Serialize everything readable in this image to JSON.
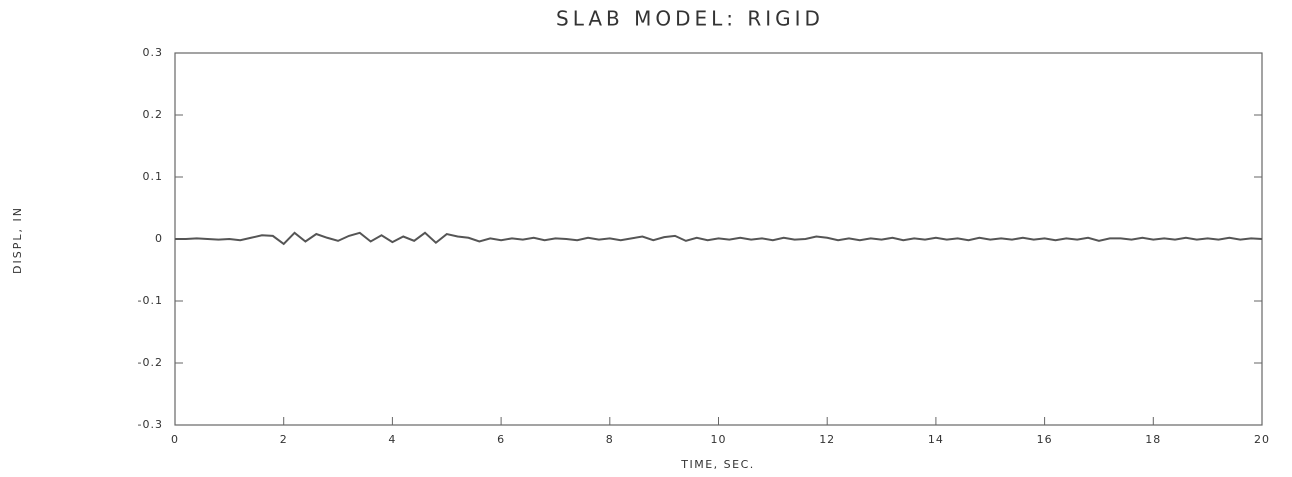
{
  "chart_data": {
    "type": "line",
    "title": "SLAB MODEL: RIGID",
    "x_label": "TIME, SEC.",
    "y_label": "DISPL, IN",
    "xlim": [
      0,
      20
    ],
    "xticks": [
      0,
      2,
      4,
      6,
      8,
      10,
      12,
      14,
      16,
      18,
      20
    ],
    "ylim": [
      -0.3,
      0.3
    ],
    "yticks": [
      0.3,
      0.2,
      0.1,
      0,
      -0.1,
      -0.2,
      -0.3
    ],
    "grid": false,
    "series": [
      {
        "color": "#555555",
        "x": [
          0,
          0.2,
          0.4,
          0.6,
          0.8,
          1,
          1.2,
          1.4,
          1.6,
          1.8,
          2,
          2.2,
          2.4,
          2.6,
          2.8,
          3,
          3.2,
          3.4,
          3.6,
          3.8,
          4,
          4.2,
          4.4,
          4.6,
          4.8,
          5,
          5.2,
          5.4,
          5.6,
          5.8,
          6,
          6.2,
          6.4,
          6.6,
          6.8,
          7,
          7.2,
          7.4,
          7.6,
          7.8,
          8,
          8.2,
          8.4,
          8.6,
          8.8,
          9,
          9.2,
          9.4,
          9.6,
          9.8,
          10,
          10.2,
          10.4,
          10.6,
          10.8,
          11,
          11.2,
          11.4,
          11.6,
          11.8,
          12,
          12.2,
          12.4,
          12.6,
          12.8,
          13,
          13.2,
          13.4,
          13.6,
          13.8,
          14,
          14.2,
          14.4,
          14.6,
          14.8,
          15,
          15.2,
          15.4,
          15.6,
          15.8,
          16,
          16.2,
          16.4,
          16.6,
          16.8,
          17,
          17.2,
          17.4,
          17.6,
          17.8,
          18,
          18.2,
          18.4,
          18.6,
          18.8,
          19,
          19.2,
          19.4,
          19.6,
          19.8,
          20
        ],
        "values": [
          0,
          0,
          0.001,
          0,
          -0.001,
          0,
          -0.002,
          0.002,
          0.006,
          0.005,
          -0.008,
          0.01,
          -0.004,
          0.008,
          0.002,
          -0.003,
          0.005,
          0.01,
          -0.004,
          0.006,
          -0.005,
          0.004,
          -0.003,
          0.01,
          -0.006,
          0.008,
          0.004,
          0.002,
          -0.004,
          0.001,
          -0.002,
          0.001,
          -0.001,
          0.002,
          -0.002,
          0.001,
          0,
          -0.002,
          0.002,
          -0.001,
          0.001,
          -0.002,
          0.001,
          0.004,
          -0.002,
          0.003,
          0.005,
          -0.003,
          0.002,
          -0.002,
          0.001,
          -0.001,
          0.002,
          -0.001,
          0.001,
          -0.002,
          0.002,
          -0.001,
          0,
          0.004,
          0.002,
          -0.002,
          0.001,
          -0.002,
          0.001,
          -0.001,
          0.002,
          -0.002,
          0.001,
          -0.001,
          0.002,
          -0.001,
          0.001,
          -0.002,
          0.002,
          -0.001,
          0.001,
          -0.001,
          0.002,
          -0.001,
          0.001,
          -0.002,
          0.001,
          -0.001,
          0.002,
          -0.003,
          0.001,
          0.001,
          -0.001,
          0.002,
          -0.001,
          0.001,
          -0.001,
          0.002,
          -0.001,
          0.001,
          -0.001,
          0.002,
          -0.001,
          0.001,
          0
        ]
      }
    ]
  }
}
